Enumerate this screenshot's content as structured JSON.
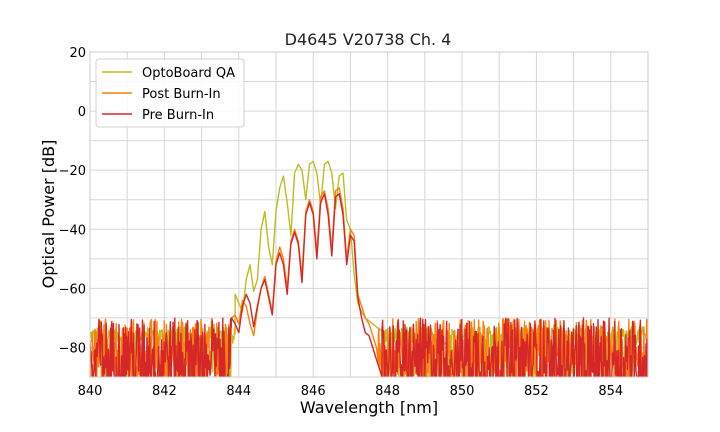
{
  "chart_data": {
    "type": "line",
    "title": "D4645 V20738 Ch. 4",
    "xlabel": "Wavelength [nm]",
    "ylabel": "Optical Power [dB]",
    "xlim": [
      840,
      855
    ],
    "ylim": [
      -90,
      20
    ],
    "x_ticks": [
      "840",
      "842",
      "844",
      "846",
      "848",
      "850",
      "852",
      "854"
    ],
    "x_tick_values": [
      840,
      842,
      844,
      846,
      848,
      850,
      852,
      854
    ],
    "y_ticks": [
      "20",
      "0",
      "−20",
      "−40",
      "−60",
      "−80"
    ],
    "y_tick_values": [
      20,
      0,
      -20,
      -40,
      -60,
      -80
    ],
    "grid": true,
    "legend_position": "top-left",
    "series": [
      {
        "name": "OptoBoard QA",
        "color": "#bcbd22",
        "noise": {
          "x_ranges": [
            [
              840,
              843.9
            ],
            [
              847.9,
              855
            ]
          ],
          "base": -76,
          "amp": 3
        },
        "x": [
          843.9,
          844.0,
          844.1,
          844.2,
          844.3,
          844.4,
          844.5,
          844.6,
          844.7,
          844.8,
          844.9,
          845.0,
          845.1,
          845.2,
          845.3,
          845.4,
          845.5,
          845.6,
          845.7,
          845.8,
          845.9,
          846.0,
          846.1,
          846.2,
          846.3,
          846.4,
          846.5,
          846.6,
          846.7,
          846.8,
          846.9,
          847.0,
          847.1,
          847.2,
          847.3,
          847.4,
          847.5,
          847.6,
          847.7,
          847.8,
          847.9
        ],
        "y": [
          -62,
          -65,
          -68,
          -57,
          -52,
          -61,
          -57,
          -40,
          -34,
          -46,
          -52,
          -34,
          -26,
          -22,
          -31,
          -42,
          -21,
          -18,
          -20,
          -30,
          -18,
          -17,
          -21,
          -32,
          -18,
          -17,
          -21,
          -33,
          -22,
          -21,
          -37,
          -40,
          -55,
          -65,
          -68,
          -70,
          -71,
          -72,
          -73,
          -74,
          -75
        ]
      },
      {
        "name": "Post Burn-In",
        "color": "#ff7f0e",
        "noise": {
          "x_ranges": [
            [
              840,
              843.8
            ],
            [
              847.75,
              855
            ]
          ],
          "base": -80,
          "amp": 10
        },
        "x": [
          843.8,
          843.9,
          844.0,
          844.1,
          844.2,
          844.3,
          844.4,
          844.5,
          844.6,
          844.7,
          844.8,
          844.9,
          845.0,
          845.1,
          845.2,
          845.3,
          845.4,
          845.5,
          845.6,
          845.7,
          845.8,
          845.9,
          846.0,
          846.1,
          846.2,
          846.3,
          846.4,
          846.5,
          846.6,
          846.7,
          846.8,
          846.9,
          847.0,
          847.1,
          847.2,
          847.3,
          847.4,
          847.5,
          847.6,
          847.7,
          847.75
        ],
        "y": [
          -70,
          -69,
          -72,
          -64,
          -66,
          -72,
          -76,
          -67,
          -60,
          -56,
          -62,
          -68,
          -51,
          -46,
          -50,
          -60,
          -44,
          -40,
          -44,
          -56,
          -34,
          -30,
          -34,
          -48,
          -29,
          -27,
          -33,
          -47,
          -27,
          -26,
          -33,
          -50,
          -40,
          -42,
          -62,
          -66,
          -70,
          -72,
          -76,
          -80,
          -85
        ]
      },
      {
        "name": "Pre Burn-In",
        "color": "#d62728",
        "noise": {
          "x_ranges": [
            [
              840,
              843.8
            ],
            [
              847.85,
              855
            ]
          ],
          "base": -82,
          "amp": 12
        },
        "x": [
          843.8,
          843.9,
          844.0,
          844.1,
          844.2,
          844.3,
          844.4,
          844.5,
          844.6,
          844.7,
          844.8,
          844.9,
          845.0,
          845.1,
          845.2,
          845.3,
          845.4,
          845.5,
          845.6,
          845.7,
          845.8,
          845.9,
          846.0,
          846.1,
          846.2,
          846.3,
          846.4,
          846.5,
          846.6,
          846.7,
          846.8,
          846.9,
          847.0,
          847.1,
          847.2,
          847.3,
          847.4,
          847.5,
          847.6,
          847.7,
          847.8,
          847.85
        ],
        "y": [
          -70,
          -72,
          -75,
          -66,
          -62,
          -65,
          -73,
          -66,
          -60,
          -57,
          -63,
          -69,
          -52,
          -48,
          -52,
          -62,
          -45,
          -41,
          -45,
          -58,
          -35,
          -31,
          -35,
          -50,
          -31,
          -28,
          -35,
          -49,
          -29,
          -28,
          -35,
          -52,
          -42,
          -44,
          -63,
          -70,
          -75,
          -76,
          -80,
          -84,
          -88,
          -90
        ]
      }
    ]
  }
}
